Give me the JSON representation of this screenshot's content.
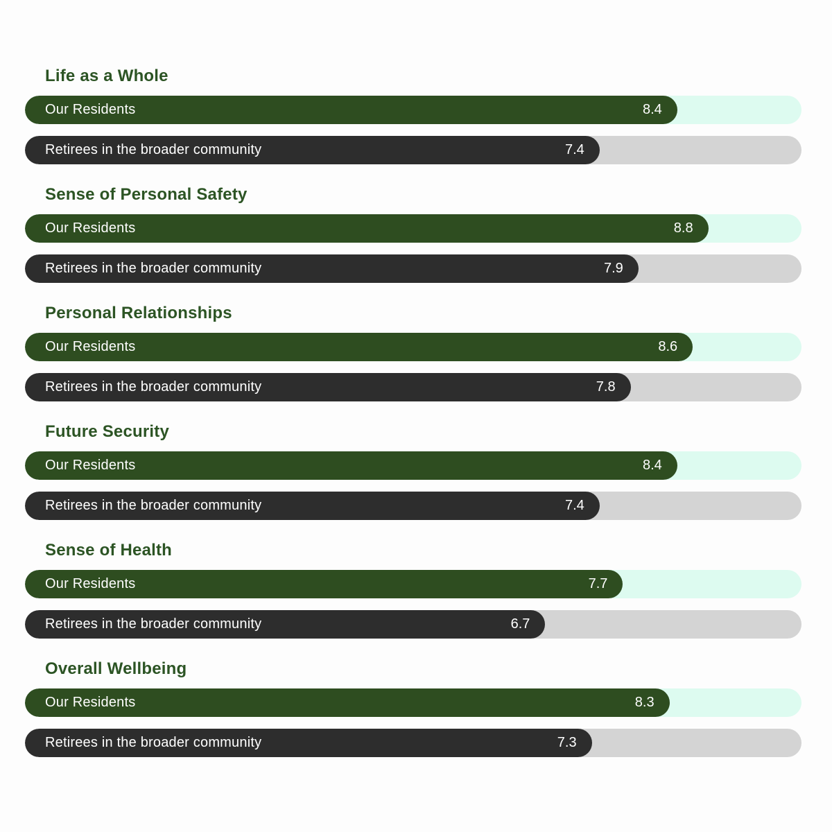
{
  "chart_data": {
    "type": "bar",
    "orientation": "horizontal",
    "max_scale": 10,
    "categories": [
      "Life as a Whole",
      "Sense of Personal Safety",
      "Personal Relationships",
      "Future Security",
      "Sense of Health",
      "Overall Wellbeing"
    ],
    "series": [
      {
        "name": "Our Residents",
        "values": [
          8.4,
          8.8,
          8.6,
          8.4,
          7.7,
          8.3
        ]
      },
      {
        "name": "Retirees in the broader community",
        "values": [
          7.4,
          7.9,
          7.8,
          7.4,
          6.7,
          7.3
        ]
      }
    ],
    "colors": {
      "residents_fill": "#2e4d20",
      "residents_track": "#ddfbf0",
      "community_fill": "#2d2d2d",
      "community_track": "#d4d4d4",
      "heading_text": "#2c5424",
      "bar_text": "#ffffff",
      "background": "#fdfdfd"
    },
    "legend_position": "in-bar-labels",
    "grid": false
  }
}
